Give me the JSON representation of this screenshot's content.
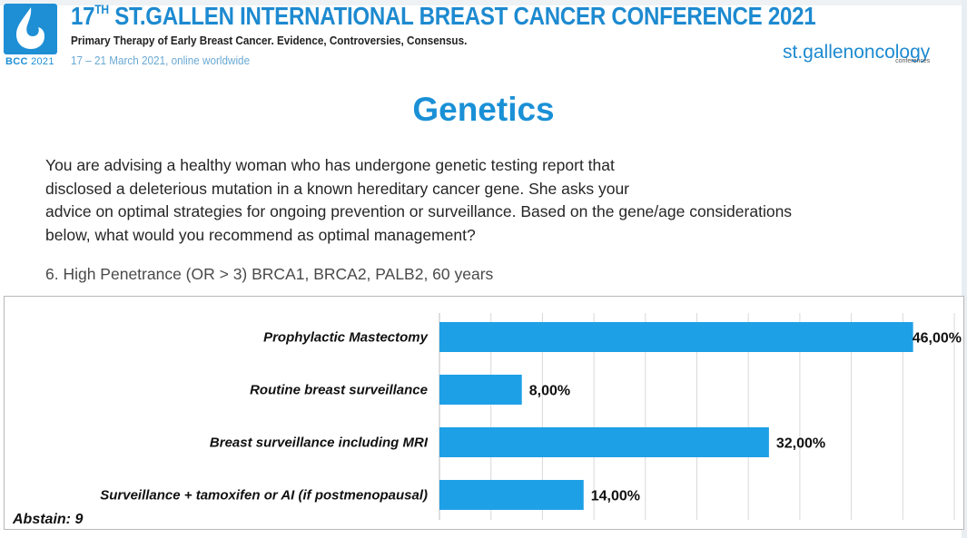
{
  "header": {
    "title_pre": "17",
    "title_sup": "TH",
    "title_post": " ST.GALLEN INTERNATIONAL BREAST CANCER CONFERENCE 2021",
    "subtitle": "Primary Therapy of Early Breast Cancer. Evidence, Controversies, Consensus.",
    "date_line": "17 – 21 March 2021, online worldwide",
    "logo_label_bold": "BCC",
    "logo_label_year": " 2021",
    "brand_name": "st.gallenoncology",
    "brand_sub": "conferences"
  },
  "slide": {
    "heading": "Genetics",
    "question_lines": [
      "You are advising a healthy woman who has undergone genetic testing report that",
      "disclosed a deleterious mutation in a known hereditary cancer gene.  She asks your",
      "advice on optimal strategies for ongoing prevention or surveillance. Based on the gene/age considerations",
      "below, what would you recommend as optimal  management?"
    ],
    "poll_label": "6. High Penetrance (OR > 3) BRCA1, BRCA2, PALB2, 60 years",
    "abstain": "Abstain: 9"
  },
  "colors": {
    "accent": "#1a90d6",
    "bar": "#1ea0e6",
    "grid": "#d9d9d9"
  },
  "chart_data": {
    "type": "bar",
    "orientation": "horizontal",
    "categories": [
      "Prophylactic Mastectomy",
      "Routine breast surveillance",
      "Breast surveillance including MRI",
      "Surveillance + tamoxifen or AI (if postmenopausal)"
    ],
    "values": [
      46,
      8,
      32,
      14
    ],
    "value_labels": [
      "46,00%",
      "8,00%",
      "32,00%",
      "14,00%"
    ],
    "xlim": [
      0,
      50
    ],
    "grid": true
  }
}
